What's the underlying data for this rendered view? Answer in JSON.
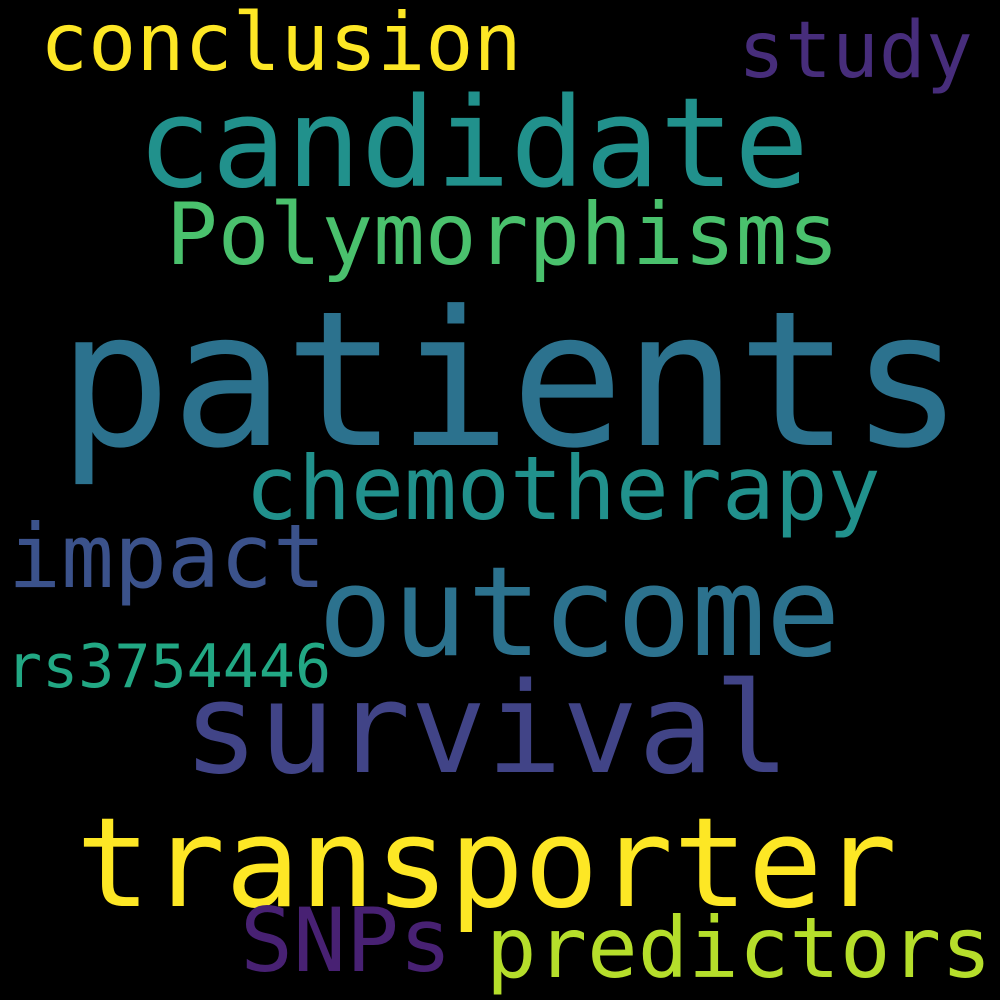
{
  "background": "#000000",
  "words": {
    "conclusion": {
      "text": "conclusion",
      "color": "#fde725"
    },
    "study": {
      "text": "study",
      "color": "#472d7b"
    },
    "candidate": {
      "text": "candidate",
      "color": "#21918c"
    },
    "polymorphisms": {
      "text": "Polymorphisms",
      "color": "#4ac16d"
    },
    "patients": {
      "text": "patients",
      "color": "#2c728e"
    },
    "chemotherapy": {
      "text": "chemotherapy",
      "color": "#21918c"
    },
    "impact": {
      "text": "impact",
      "color": "#3b528b"
    },
    "outcome": {
      "text": "outcome",
      "color": "#2c728e"
    },
    "rs3754446": {
      "text": "rs3754446",
      "color": "#22a884"
    },
    "survival": {
      "text": "survival",
      "color": "#414487"
    },
    "transporter": {
      "text": "transporter",
      "color": "#fde725"
    },
    "snps": {
      "text": "SNPs",
      "color": "#482173"
    },
    "predictors": {
      "text": "predictors",
      "color": "#b5de2b"
    }
  }
}
